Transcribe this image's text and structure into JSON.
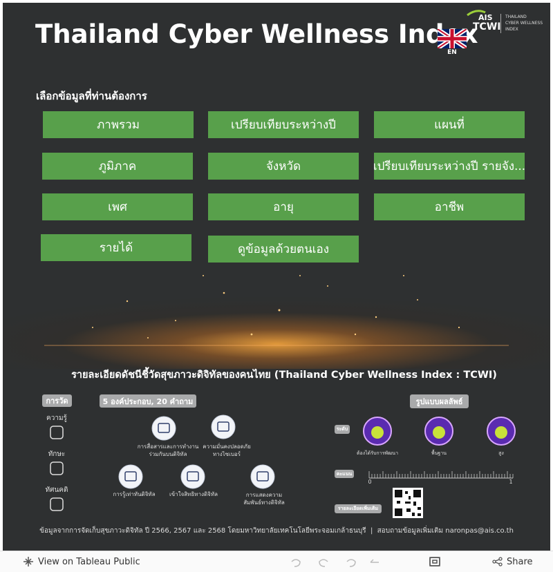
{
  "header": {
    "title": "Thailand Cyber Wellness Index",
    "logo": {
      "brand": "AIS",
      "name": "TCWI",
      "tagline": [
        "THAILAND",
        "CYBER WELLNESS",
        "INDEX"
      ]
    },
    "language": "EN"
  },
  "menu": {
    "prompt": "เลือกข้อมูลที่ท่านต้องการ",
    "buttons": [
      "ภาพรวม",
      "เปรียบเทียบระหว่างปี",
      "แผนที่",
      "ภูมิภาค",
      "จังหวัด",
      "เปรียบเทียบระหว่างปี รายจัง...",
      "เพศ",
      "อายุ",
      "อาชีพ",
      "รายได้",
      "ดูข้อมูลด้วยตนเอง"
    ]
  },
  "details": {
    "title": "รายละเอียดดัชนีชี้วัดสุขภาวะดิจิทัลของคนไทย (Thailand Cyber Wellness Index : TCWI)",
    "measure": {
      "label": "การวัด",
      "items": [
        "ความรู้",
        "ทักษะ",
        "ทัศนคติ"
      ]
    },
    "components": {
      "label": "5 องค์ประกอบ, 20 คำถาม",
      "items": [
        "การสื่อสารและการทำงานร่วมกันบนดิจิทัล",
        "ความมั่นคงปลอดภัยทางไซเบอร์",
        "การรู้เท่าทันดิจิทัล",
        "เข้าใจสิทธิทางดิจิทัล",
        "การแสดงความสัมพันธ์ทางดิจิทัล"
      ]
    },
    "results": {
      "label": "รูปแบบผลลัพธ์",
      "level_label": "ระดับ",
      "levels": [
        "ต้องได้รับการพัฒนา",
        "พื้นฐาน",
        "สูง"
      ],
      "score_label": "คะแนน",
      "score_min": 0,
      "score_max": 1,
      "more_label": "รายละเอียดเพิ่มเติม"
    },
    "source": "ข้อมูลจากการจัดเก็บสุขภาวะดิจิทัล ปี 2566, 2567 และ 2568 โดยมหาวิทยาลัยเทคโนโลยีพระจอมเกล้าธนบุรี  |  สอบถามข้อมูลเพิ่มเติม naronpas@ais.co.th"
  },
  "toolbar": {
    "view": "View on Tableau Public",
    "share": "Share"
  }
}
